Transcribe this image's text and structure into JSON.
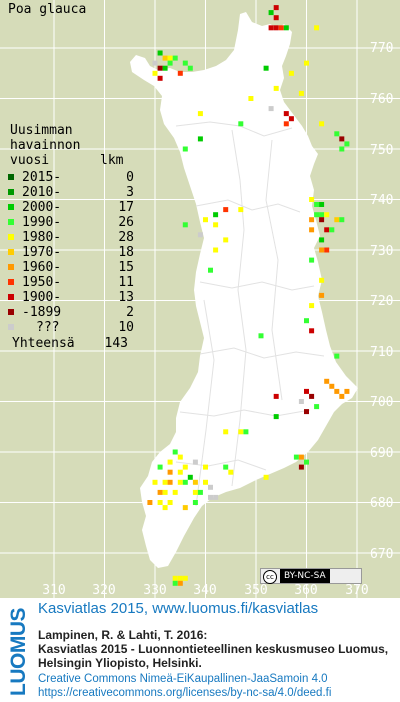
{
  "species": "Poa glauca",
  "legend": {
    "heading": [
      "Uusimman",
      "havainnon"
    ],
    "col_label": "vuosi",
    "col_count": "lkm",
    "rows": [
      {
        "label": "2015-",
        "count": "0",
        "color": "#006600"
      },
      {
        "label": "2010-",
        "count": "3",
        "color": "#009900"
      },
      {
        "label": "2000-",
        "count": "17",
        "color": "#00cc00"
      },
      {
        "label": "1990-",
        "count": "26",
        "color": "#33ff33"
      },
      {
        "label": "1980-",
        "count": "28",
        "color": "#ffff00"
      },
      {
        "label": "1970-",
        "count": "18",
        "color": "#ffcc00"
      },
      {
        "label": "1960-",
        "count": "15",
        "color": "#ff9900"
      },
      {
        "label": "1950-",
        "count": "11",
        "color": "#ff3300"
      },
      {
        "label": "1900-",
        "count": "13",
        "color": "#cc0000"
      },
      {
        "label": "-1899",
        "count": "2",
        "color": "#990000"
      },
      {
        "label": "???",
        "count": "10",
        "color": "#cccccc"
      }
    ],
    "total_label": "Yhteensä",
    "total_count": "143"
  },
  "grid": {
    "y_labels": [
      "770",
      "760",
      "750",
      "740",
      "730",
      "720",
      "710",
      "700",
      "690",
      "680",
      "670"
    ],
    "x_labels": [
      "310",
      "320",
      "330",
      "340",
      "350",
      "360",
      "370"
    ]
  },
  "observations": [
    {
      "e": 353,
      "n": 774,
      "c": 8
    },
    {
      "e": 354,
      "n": 774,
      "c": 8
    },
    {
      "e": 355,
      "n": 774,
      "c": 7
    },
    {
      "e": 356,
      "n": 774,
      "c": 2
    },
    {
      "e": 354,
      "n": 776,
      "c": 8
    },
    {
      "e": 353,
      "n": 777,
      "c": 2
    },
    {
      "e": 354,
      "n": 778,
      "c": 8
    },
    {
      "e": 362,
      "n": 774,
      "c": 4
    },
    {
      "e": 331,
      "n": 769,
      "c": 2
    },
    {
      "e": 332,
      "n": 768,
      "c": 5
    },
    {
      "e": 333,
      "n": 768,
      "c": 4
    },
    {
      "e": 334,
      "n": 768,
      "c": 3
    },
    {
      "e": 333,
      "n": 767,
      "c": 3
    },
    {
      "e": 330,
      "n": 767,
      "c": 10
    },
    {
      "e": 331,
      "n": 766,
      "c": 9
    },
    {
      "e": 332,
      "n": 766,
      "c": 2
    },
    {
      "e": 336,
      "n": 767,
      "c": 3
    },
    {
      "e": 330,
      "n": 765,
      "c": 4
    },
    {
      "e": 331,
      "n": 764,
      "c": 8
    },
    {
      "e": 337,
      "n": 766,
      "c": 3
    },
    {
      "e": 335,
      "n": 765,
      "c": 7
    },
    {
      "e": 360,
      "n": 767,
      "c": 4
    },
    {
      "e": 352,
      "n": 766,
      "c": 2
    },
    {
      "e": 357,
      "n": 765,
      "c": 4
    },
    {
      "e": 359,
      "n": 761,
      "c": 4
    },
    {
      "e": 354,
      "n": 762,
      "c": 4
    },
    {
      "e": 353,
      "n": 758,
      "c": 10
    },
    {
      "e": 349,
      "n": 760,
      "c": 4
    },
    {
      "e": 339,
      "n": 757,
      "c": 4
    },
    {
      "e": 347,
      "n": 755,
      "c": 3
    },
    {
      "e": 356,
      "n": 755,
      "c": 7
    },
    {
      "e": 357,
      "n": 756,
      "c": 8
    },
    {
      "e": 356,
      "n": 757,
      "c": 8
    },
    {
      "e": 363,
      "n": 755,
      "c": 4
    },
    {
      "e": 366,
      "n": 753,
      "c": 3
    },
    {
      "e": 367,
      "n": 752,
      "c": 9
    },
    {
      "e": 368,
      "n": 751,
      "c": 3
    },
    {
      "e": 367,
      "n": 750,
      "c": 3
    },
    {
      "e": 336,
      "n": 750,
      "c": 3
    },
    {
      "e": 339,
      "n": 752,
      "c": 2
    },
    {
      "e": 342,
      "n": 737,
      "c": 2
    },
    {
      "e": 344,
      "n": 738,
      "c": 7
    },
    {
      "e": 347,
      "n": 738,
      "c": 4
    },
    {
      "e": 336,
      "n": 735,
      "c": 3
    },
    {
      "e": 340,
      "n": 736,
      "c": 4
    },
    {
      "e": 339,
      "n": 733,
      "c": 10
    },
    {
      "e": 342,
      "n": 735,
      "c": 4
    },
    {
      "e": 344,
      "n": 732,
      "c": 4
    },
    {
      "e": 342,
      "n": 730,
      "c": 4
    },
    {
      "e": 341,
      "n": 726,
      "c": 3
    },
    {
      "e": 361,
      "n": 740,
      "c": 4
    },
    {
      "e": 362,
      "n": 739,
      "c": 3
    },
    {
      "e": 363,
      "n": 739,
      "c": 2
    },
    {
      "e": 362,
      "n": 737,
      "c": 3
    },
    {
      "e": 363,
      "n": 737,
      "c": 3
    },
    {
      "e": 364,
      "n": 737,
      "c": 4
    },
    {
      "e": 361,
      "n": 736,
      "c": 6
    },
    {
      "e": 363,
      "n": 736,
      "c": 9
    },
    {
      "e": 366,
      "n": 736,
      "c": 5
    },
    {
      "e": 367,
      "n": 736,
      "c": 3
    },
    {
      "e": 361,
      "n": 734,
      "c": 6
    },
    {
      "e": 364,
      "n": 734,
      "c": 8
    },
    {
      "e": 365,
      "n": 734,
      "c": 3
    },
    {
      "e": 363,
      "n": 732,
      "c": 2
    },
    {
      "e": 363,
      "n": 730,
      "c": 6
    },
    {
      "e": 364,
      "n": 730,
      "c": 7
    },
    {
      "e": 361,
      "n": 728,
      "c": 3
    },
    {
      "e": 363,
      "n": 724,
      "c": 4
    },
    {
      "e": 363,
      "n": 721,
      "c": 6
    },
    {
      "e": 361,
      "n": 719,
      "c": 4
    },
    {
      "e": 360,
      "n": 716,
      "c": 3
    },
    {
      "e": 361,
      "n": 714,
      "c": 8
    },
    {
      "e": 351,
      "n": 713,
      "c": 3
    },
    {
      "e": 366,
      "n": 709,
      "c": 3
    },
    {
      "e": 364,
      "n": 704,
      "c": 6
    },
    {
      "e": 365,
      "n": 703,
      "c": 6
    },
    {
      "e": 366,
      "n": 702,
      "c": 6
    },
    {
      "e": 367,
      "n": 701,
      "c": 6
    },
    {
      "e": 368,
      "n": 702,
      "c": 6
    },
    {
      "e": 360,
      "n": 702,
      "c": 8
    },
    {
      "e": 361,
      "n": 701,
      "c": 9
    },
    {
      "e": 359,
      "n": 700,
      "c": 10
    },
    {
      "e": 362,
      "n": 699,
      "c": 3
    },
    {
      "e": 360,
      "n": 698,
      "c": 9
    },
    {
      "e": 354,
      "n": 701,
      "c": 8
    },
    {
      "e": 354,
      "n": 697,
      "c": 2
    },
    {
      "e": 344,
      "n": 694,
      "c": 4
    },
    {
      "e": 347,
      "n": 694,
      "c": 4
    },
    {
      "e": 348,
      "n": 694,
      "c": 3
    },
    {
      "e": 358,
      "n": 689,
      "c": 3
    },
    {
      "e": 359,
      "n": 689,
      "c": 6
    },
    {
      "e": 360,
      "n": 688,
      "c": 3
    },
    {
      "e": 359,
      "n": 687,
      "c": 9
    },
    {
      "e": 352,
      "n": 685,
      "c": 4
    },
    {
      "e": 334,
      "n": 690,
      "c": 3
    },
    {
      "e": 335,
      "n": 689,
      "c": 4
    },
    {
      "e": 333,
      "n": 688,
      "c": 4
    },
    {
      "e": 331,
      "n": 687,
      "c": 3
    },
    {
      "e": 333,
      "n": 686,
      "c": 6
    },
    {
      "e": 335,
      "n": 686,
      "c": 4
    },
    {
      "e": 336,
      "n": 687,
      "c": 4
    },
    {
      "e": 338,
      "n": 688,
      "c": 10
    },
    {
      "e": 340,
      "n": 687,
      "c": 4
    },
    {
      "e": 344,
      "n": 687,
      "c": 3
    },
    {
      "e": 345,
      "n": 686,
      "c": 4
    },
    {
      "e": 337,
      "n": 685,
      "c": 2
    },
    {
      "e": 330,
      "n": 684,
      "c": 4
    },
    {
      "e": 332,
      "n": 684,
      "c": 4
    },
    {
      "e": 333,
      "n": 684,
      "c": 6
    },
    {
      "e": 335,
      "n": 684,
      "c": 4
    },
    {
      "e": 336,
      "n": 684,
      "c": 3
    },
    {
      "e": 338,
      "n": 684,
      "c": 5
    },
    {
      "e": 340,
      "n": 684,
      "c": 4
    },
    {
      "e": 341,
      "n": 683,
      "c": 10
    },
    {
      "e": 331,
      "n": 682,
      "c": 6
    },
    {
      "e": 332,
      "n": 682,
      "c": 4
    },
    {
      "e": 334,
      "n": 682,
      "c": 4
    },
    {
      "e": 338,
      "n": 682,
      "c": 4
    },
    {
      "e": 339,
      "n": 682,
      "c": 3
    },
    {
      "e": 341,
      "n": 681,
      "c": 10
    },
    {
      "e": 342,
      "n": 681,
      "c": 10
    },
    {
      "e": 329,
      "n": 680,
      "c": 6
    },
    {
      "e": 331,
      "n": 680,
      "c": 4
    },
    {
      "e": 333,
      "n": 680,
      "c": 4
    },
    {
      "e": 336,
      "n": 679,
      "c": 5
    },
    {
      "e": 338,
      "n": 680,
      "c": 3
    },
    {
      "e": 332,
      "n": 679,
      "c": 4
    },
    {
      "e": 334,
      "n": 665,
      "c": 4
    },
    {
      "e": 335,
      "n": 665,
      "c": 4
    },
    {
      "e": 336,
      "n": 665,
      "c": 4
    },
    {
      "e": 334,
      "n": 664,
      "c": 3
    },
    {
      "e": 335,
      "n": 664,
      "c": 6
    }
  ],
  "cc_badge": "BY-NC-SA",
  "footer": {
    "brand": "LUOMUS",
    "title": "Kasviatlas 2015, www.luomus.fi/kasviatlas",
    "citation_1": "Lampinen, R. & Lahti, T. 2016:",
    "citation_2": "Kasviatlas 2015 - Luonnontieteellinen keskusmuseo Luomus,",
    "citation_3": "Helsingin Yliopisto, Helsinki.",
    "license_1": "Creative Commons Nimeä-EiKaupallinen-JaaSamoin 4.0",
    "license_2": "https://creativecommons.org/licenses/by-nc-sa/4.0/deed.fi"
  }
}
